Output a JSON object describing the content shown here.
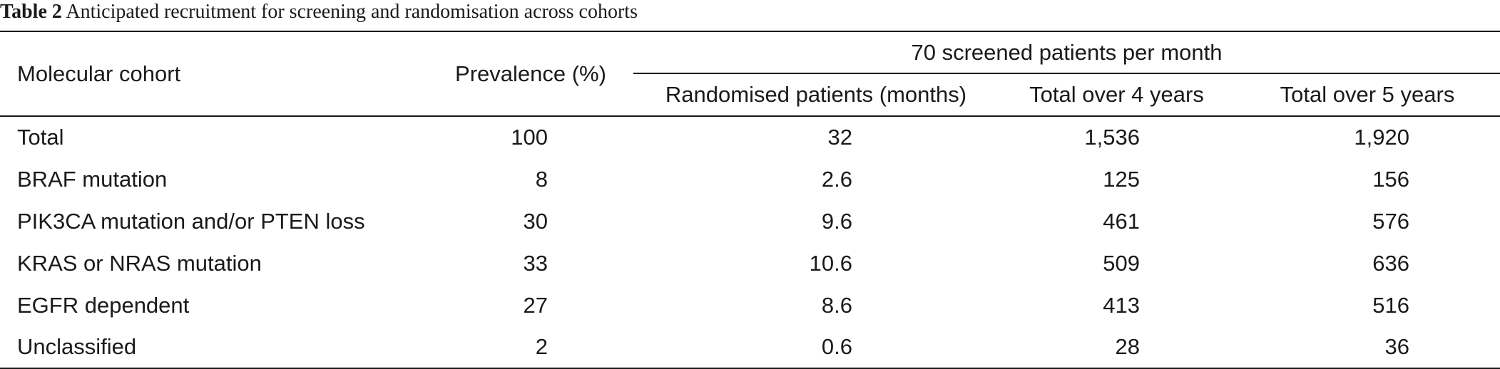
{
  "caption": {
    "label": "Table 2",
    "text": "Anticipated recruitment for screening and randomisation across cohorts"
  },
  "headers": {
    "col1": "Molecular cohort",
    "col2": "Prevalence (%)",
    "group": "70 screened patients per month",
    "col3": "Randomised patients (months)",
    "col4": "Total over 4 years",
    "col5": "Total over 5 years"
  },
  "rows": [
    {
      "cohort": "Total",
      "prevalence": "100",
      "randomised": "32",
      "total4": "1,536",
      "total5": "1,920"
    },
    {
      "cohort": "BRAF mutation",
      "prevalence": "8",
      "randomised": "2.6",
      "total4": "125",
      "total5": "156"
    },
    {
      "cohort": "PIK3CA mutation and/or PTEN loss",
      "prevalence": "30",
      "randomised": "9.6",
      "total4": "461",
      "total5": "576"
    },
    {
      "cohort": "KRAS or NRAS mutation",
      "prevalence": "33",
      "randomised": "10.6",
      "total4": "509",
      "total5": "636"
    },
    {
      "cohort": "EGFR dependent",
      "prevalence": "27",
      "randomised": "8.6",
      "total4": "413",
      "total5": "516"
    },
    {
      "cohort": "Unclassified",
      "prevalence": "2",
      "randomised": "0.6",
      "total4": "28",
      "total5": "36"
    }
  ]
}
